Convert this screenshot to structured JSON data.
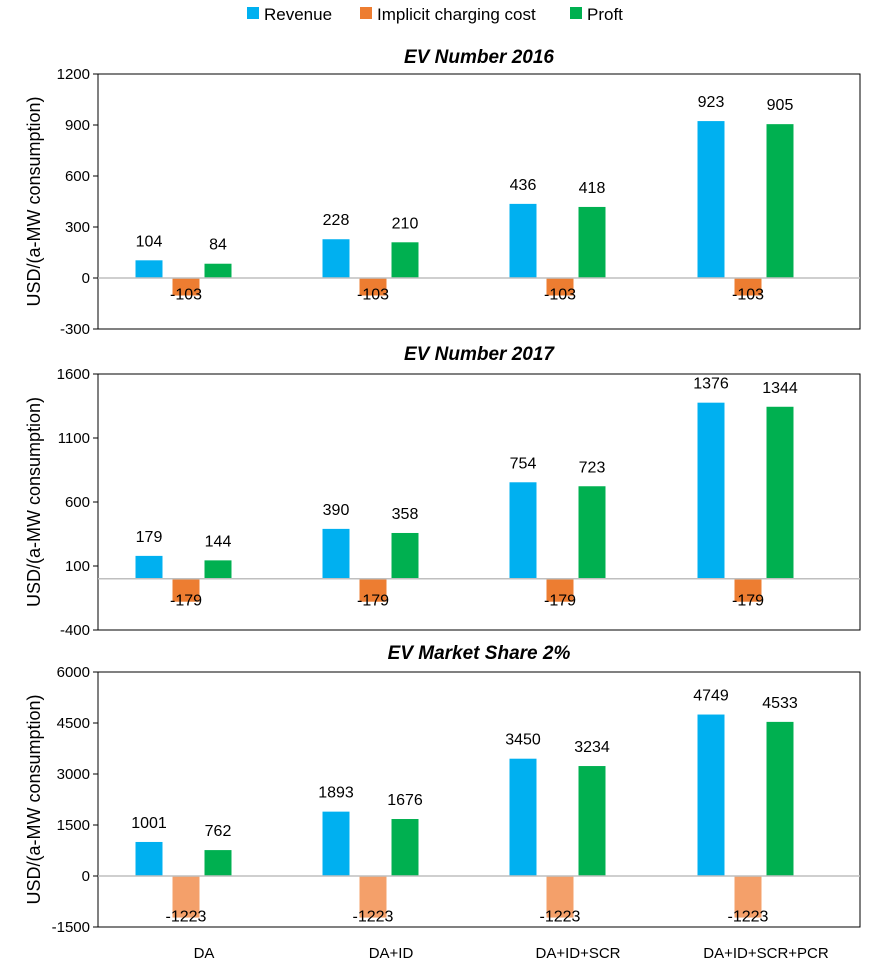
{
  "legend": [
    {
      "name": "Revenue",
      "color": "#00b0f0"
    },
    {
      "name": "Implicit charging cost",
      "color": "#ed7d31"
    },
    {
      "name": "Proft",
      "color": "#00b050"
    }
  ],
  "chart_data": [
    {
      "type": "bar",
      "title": "EV Number 2016",
      "ylabel": "USD/(a-MW consumption)",
      "xlabel": "",
      "ylim": [
        -300,
        1200
      ],
      "yticks": [
        "-300",
        "0",
        "300",
        "600",
        "900",
        "1200"
      ],
      "categories": [
        "DA",
        "DA+ID",
        "DA+ID+SCR",
        "DA+ID+SCR+PCR"
      ],
      "series": [
        {
          "name": "Revenue",
          "values": [
            104,
            228,
            436,
            923
          ],
          "labels": [
            "104",
            "228",
            "436",
            "923"
          ]
        },
        {
          "name": "Implicit charging cost",
          "values": [
            -103,
            -103,
            -103,
            -103
          ],
          "labels": [
            "-103",
            "-103",
            "-103",
            "-103"
          ]
        },
        {
          "name": "Proft",
          "values": [
            84,
            210,
            418,
            905
          ],
          "labels": [
            "84",
            "210",
            "418",
            "905"
          ]
        }
      ]
    },
    {
      "type": "bar",
      "title": "EV Number 2017",
      "ylabel": "USD/(a-MW consumption)",
      "xlabel": "",
      "ylim": [
        -400,
        1600
      ],
      "yticks": [
        "-400",
        "100",
        "600",
        "1100",
        "1600"
      ],
      "categories": [
        "DA",
        "DA+ID",
        "DA+ID+SCR",
        "DA+ID+SCR+PCR"
      ],
      "series": [
        {
          "name": "Revenue",
          "values": [
            179,
            390,
            754,
            1376
          ],
          "labels": [
            "179",
            "390",
            "754",
            "1376"
          ]
        },
        {
          "name": "Implicit charging cost",
          "values": [
            -179,
            -179,
            -179,
            -179
          ],
          "labels": [
            "-179",
            "-179",
            "-179",
            "-179"
          ]
        },
        {
          "name": "Proft",
          "values": [
            144,
            358,
            723,
            1344
          ],
          "labels": [
            "144",
            "358",
            "723",
            "1344"
          ]
        }
      ]
    },
    {
      "type": "bar",
      "title": "EV Market Share 2%",
      "ylabel": "USD/(a-MW consumption)",
      "xlabel": "",
      "ylim": [
        -1500,
        6000
      ],
      "yticks": [
        "-1500",
        "0",
        "1500",
        "3000",
        "4500",
        "6000"
      ],
      "categories": [
        "DA",
        "DA+ID",
        "DA+ID+SCR",
        "DA+ID+SCR+PCR"
      ],
      "series": [
        {
          "name": "Revenue",
          "values": [
            1001,
            1893,
            3450,
            4749
          ],
          "labels": [
            "1001",
            "1893",
            "3450",
            "4749"
          ]
        },
        {
          "name": "Implicit charging cost",
          "values": [
            -1223,
            -1223,
            -1223,
            -1223
          ],
          "labels": [
            "-1223",
            "-1223",
            "-1223",
            "-1223"
          ]
        },
        {
          "name": "Proft",
          "values": [
            762,
            1676,
            3234,
            4533
          ],
          "labels": [
            "762",
            "1676",
            "3234",
            "4533"
          ]
        }
      ]
    }
  ]
}
